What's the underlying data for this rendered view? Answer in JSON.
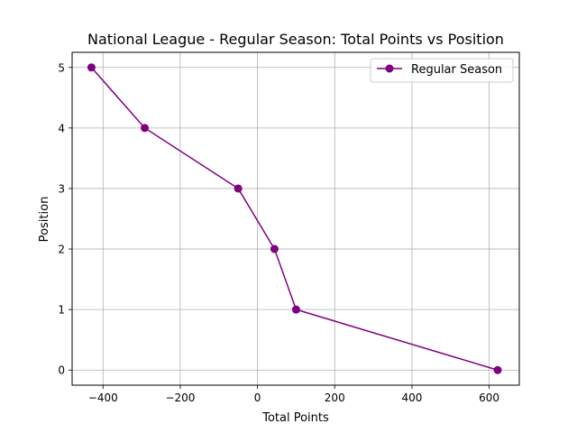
{
  "chart_data": {
    "type": "line",
    "title": "National League - Regular Season: Total Points vs Position",
    "xlabel": "Total Points",
    "ylabel": "Position",
    "xlim": [
      -480,
      678
    ],
    "ylim": [
      -0.25,
      5.25
    ],
    "xticks": [
      -400,
      -200,
      0,
      200,
      400,
      600
    ],
    "xtick_labels": [
      "−400",
      "−200",
      "0",
      "200",
      "400",
      "600"
    ],
    "yticks": [
      0,
      1,
      2,
      3,
      4,
      5
    ],
    "ytick_labels": [
      "0",
      "1",
      "2",
      "3",
      "4",
      "5"
    ],
    "grid": true,
    "legend_position": "top-right",
    "series": [
      {
        "name": "Regular Season",
        "color": "#800080",
        "marker": "circle",
        "x": [
          -430,
          -292,
          -50,
          44,
          100,
          622
        ],
        "y": [
          5,
          4,
          3,
          2,
          1,
          0
        ]
      }
    ]
  }
}
